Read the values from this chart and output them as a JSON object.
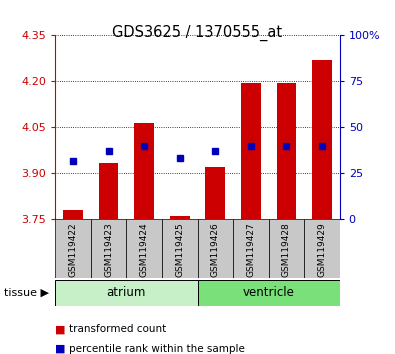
{
  "title": "GDS3625 / 1370555_at",
  "samples": [
    "GSM119422",
    "GSM119423",
    "GSM119424",
    "GSM119425",
    "GSM119426",
    "GSM119427",
    "GSM119428",
    "GSM119429"
  ],
  "bar_tops": [
    3.782,
    3.933,
    4.063,
    3.762,
    3.922,
    4.195,
    4.195,
    4.27
  ],
  "bar_base": 3.75,
  "blue_y": [
    3.942,
    3.972,
    3.988,
    3.952,
    3.972,
    3.988,
    3.988,
    3.988
  ],
  "ylim_left": [
    3.75,
    4.35
  ],
  "yticks_left": [
    3.75,
    3.9,
    4.05,
    4.2,
    4.35
  ],
  "yticks_right_labels": [
    "0",
    "25",
    "50",
    "75",
    "100%"
  ],
  "yticks_right_vals": [
    0,
    25,
    50,
    75,
    100
  ],
  "ylim_right": [
    0,
    100
  ],
  "tissue_groups": [
    {
      "label": "atrium",
      "start": 0,
      "end": 3,
      "color": "#c8f0c8"
    },
    {
      "label": "ventricle",
      "start": 4,
      "end": 7,
      "color": "#7ae07a"
    }
  ],
  "bar_color": "#cc0000",
  "blue_color": "#0000bb",
  "left_axis_color": "#cc0000",
  "right_axis_color": "#0000bb",
  "bg_color": "#ffffff",
  "label_bg": "#c8c8c8",
  "bar_width": 0.55,
  "blue_marker_size": 5,
  "legend": [
    {
      "label": "transformed count",
      "color": "#cc0000"
    },
    {
      "label": "percentile rank within the sample",
      "color": "#0000bb"
    }
  ]
}
